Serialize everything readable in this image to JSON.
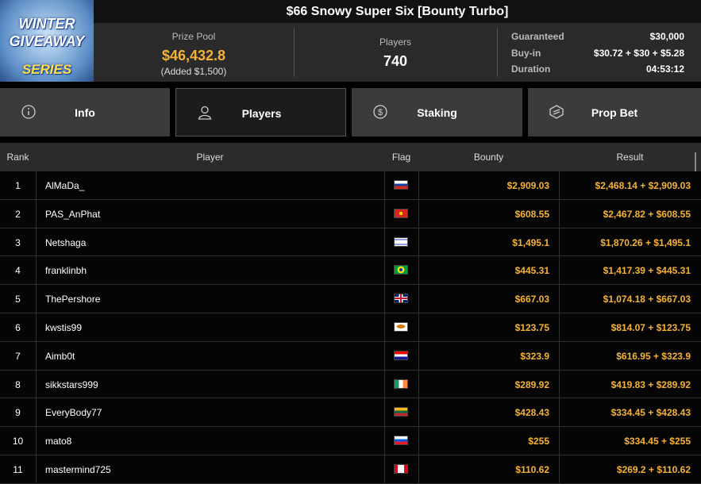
{
  "logo": {
    "lines": [
      "WINTER",
      "GIVEAWAY",
      "SERIES"
    ]
  },
  "header": {
    "title": "$66 Snowy Super Six [Bounty Turbo]"
  },
  "summary": {
    "prize_pool": {
      "label": "Prize Pool",
      "value": "$46,432.8",
      "note": "(Added $1,500)"
    },
    "players": {
      "label": "Players",
      "value": "740"
    },
    "details": [
      {
        "label": "Guaranteed",
        "value": "$30,000"
      },
      {
        "label": "Buy-in",
        "value": "$30.72 + $30 + $5.28"
      },
      {
        "label": "Duration",
        "value": "04:53:12"
      }
    ]
  },
  "tabs": [
    "Info",
    "Players",
    "Staking",
    "Prop Bet"
  ],
  "table": {
    "columns": [
      "Rank",
      "Player",
      "Flag",
      "Bounty",
      "Result"
    ],
    "rows": [
      [
        "1",
        "AlMaDa_",
        "$2,909.03",
        "$2,468.14 + $2,909.03"
      ],
      [
        "2",
        "PAS_AnPhat",
        "$608.55",
        "$2,467.82 + $608.55"
      ],
      [
        "3",
        "Netshaga",
        "$1,495.1",
        "$1,870.26 + $1,495.1"
      ],
      [
        "4",
        "franklinbh",
        "$445.31",
        "$1,417.39 + $445.31"
      ],
      [
        "5",
        "ThePershore",
        "$667.03",
        "$1,074.18 + $667.03"
      ],
      [
        "6",
        "kwstis99",
        "$123.75",
        "$814.07 + $123.75"
      ],
      [
        "7",
        "Aimb0t",
        "$323.9",
        "$616.95 + $323.9"
      ],
      [
        "8",
        "sikkstars999",
        "$289.92",
        "$419.83 + $289.92"
      ],
      [
        "9",
        "EveryBody77",
        "$428.43",
        "$334.45 + $428.43"
      ],
      [
        "10",
        "mato8",
        "$255",
        "$334.45 + $255"
      ],
      [
        "11",
        "mastermind725",
        "$110.62",
        "$269.2 + $110.62"
      ]
    ]
  }
}
